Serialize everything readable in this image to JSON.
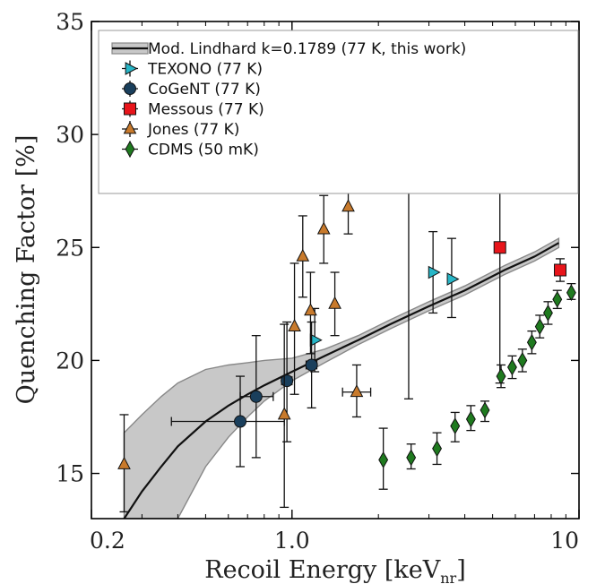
{
  "chart_data": {
    "type": "scatter",
    "title": "",
    "xlabel": "Recoil Energy [keV",
    "xlabel_sub": "nr",
    "xlabel_close": "]",
    "ylabel": "Quenching Factor [%]",
    "xscale": "log",
    "xlim": [
      0.2,
      10
    ],
    "ylim": [
      13,
      35
    ],
    "xticks": [
      {
        "v": 0.2,
        "label": "0.2"
      },
      {
        "v": 1.0,
        "label": "1.0"
      },
      {
        "v": 10,
        "label": "10"
      }
    ],
    "yticks": [
      {
        "v": 15,
        "label": "15"
      },
      {
        "v": 20,
        "label": "20"
      },
      {
        "v": 25,
        "label": "25"
      },
      {
        "v": 30,
        "label": "30"
      },
      {
        "v": 35,
        "label": "35"
      }
    ],
    "legend_position": "top-right",
    "curve": {
      "name": "Mod. Lindhard k=0.1789 (77 K, this work)",
      "color": "#111111",
      "band_color": "#c8c8c8",
      "x": [
        0.26,
        0.3,
        0.35,
        0.4,
        0.5,
        0.6,
        0.7,
        0.8,
        1.0,
        1.3,
        1.7,
        2.2,
        3.0,
        4.0,
        5.5,
        7.0,
        8.5
      ],
      "y": [
        13.0,
        14.2,
        15.3,
        16.2,
        17.3,
        18.0,
        18.5,
        18.9,
        19.5,
        20.2,
        20.9,
        21.6,
        22.4,
        23.1,
        24.0,
        24.6,
        25.2
      ],
      "band_lower": [
        13.0,
        13.0,
        13.0,
        13.0,
        15.3,
        16.6,
        17.5,
        18.2,
        19.1,
        19.9,
        20.7,
        21.4,
        22.2,
        22.9,
        23.8,
        24.4,
        25.0
      ],
      "band_upper": [
        16.8,
        17.6,
        18.4,
        19.0,
        19.6,
        19.8,
        19.9,
        20.0,
        20.1,
        20.5,
        21.1,
        21.8,
        22.6,
        23.3,
        24.2,
        24.8,
        25.4
      ]
    },
    "series": [
      {
        "name": "TEXONO (77 K)",
        "marker": "triangle-right",
        "color": "#27b6c7",
        "points": [
          {
            "x": 1.2,
            "y": 20.9,
            "ylo": 19.5,
            "yhi": 22.3
          },
          {
            "x": 3.1,
            "y": 23.9,
            "ylo": 22.1,
            "yhi": 25.7
          },
          {
            "x": 3.6,
            "y": 23.6,
            "ylo": 21.9,
            "yhi": 25.4
          }
        ]
      },
      {
        "name": "CoGeNT (77 K)",
        "marker": "circle",
        "color": "#1a3f5c",
        "points": [
          {
            "x": 0.66,
            "y": 17.3,
            "ylo": 15.3,
            "yhi": 19.3,
            "xlo": 0.38,
            "xhi": 0.94
          },
          {
            "x": 0.75,
            "y": 18.4,
            "ylo": 15.7,
            "yhi": 21.1,
            "xlo": 0.66,
            "xhi": 0.86
          },
          {
            "x": 0.96,
            "y": 19.1,
            "ylo": 16.4,
            "yhi": 21.7,
            "xlo": 0.92,
            "xhi": 1.0
          },
          {
            "x": 1.17,
            "y": 19.8,
            "ylo": 17.9,
            "yhi": 21.7,
            "xlo": 1.12,
            "xhi": 1.22
          }
        ]
      },
      {
        "name": "Messous (77 K)",
        "marker": "square",
        "color": "#e8151b",
        "points": [
          {
            "x": 2.55,
            "y": 29.6,
            "ylo": 18.3,
            "yhi": 33.0
          },
          {
            "x": 5.3,
            "y": 25.0,
            "ylo": 19.0,
            "yhi": 31.1
          },
          {
            "x": 8.6,
            "y": 24.0,
            "ylo": 23.5,
            "yhi": 24.5
          }
        ]
      },
      {
        "name": "Jones (77 K)",
        "marker": "triangle-up",
        "color": "#c87a2c",
        "points": [
          {
            "x": 0.26,
            "y": 15.4,
            "ylo": 13.3,
            "yhi": 17.6
          },
          {
            "x": 0.94,
            "y": 17.6,
            "ylo": 13.5,
            "yhi": 21.6
          },
          {
            "x": 1.02,
            "y": 21.5,
            "ylo": 18.5,
            "yhi": 24.3
          },
          {
            "x": 1.09,
            "y": 24.6,
            "ylo": 22.8,
            "yhi": 26.4
          },
          {
            "x": 1.16,
            "y": 22.2,
            "ylo": 20.3,
            "yhi": 23.9
          },
          {
            "x": 1.29,
            "y": 25.8,
            "ylo": 24.3,
            "yhi": 27.3
          },
          {
            "x": 1.41,
            "y": 22.5,
            "ylo": 21.1,
            "yhi": 23.9
          },
          {
            "x": 1.57,
            "y": 26.8,
            "ylo": 25.6,
            "yhi": 28.1
          },
          {
            "x": 1.68,
            "y": 18.6,
            "ylo": 17.5,
            "yhi": 19.8,
            "xlo": 1.5,
            "xhi": 1.88
          }
        ]
      },
      {
        "name": "CDMS (50 mK)",
        "marker": "diamond",
        "color": "#1f7a1f",
        "points": [
          {
            "x": 2.08,
            "y": 15.6,
            "ylo": 14.3,
            "yhi": 17.0
          },
          {
            "x": 2.6,
            "y": 15.7,
            "ylo": 15.2,
            "yhi": 16.3
          },
          {
            "x": 3.2,
            "y": 16.1,
            "ylo": 15.4,
            "yhi": 16.8
          },
          {
            "x": 3.7,
            "y": 17.1,
            "ylo": 16.4,
            "yhi": 17.7
          },
          {
            "x": 4.2,
            "y": 17.4,
            "ylo": 16.9,
            "yhi": 18.0
          },
          {
            "x": 4.7,
            "y": 17.8,
            "ylo": 17.3,
            "yhi": 18.2
          },
          {
            "x": 5.35,
            "y": 19.3,
            "ylo": 18.8,
            "yhi": 19.8
          },
          {
            "x": 5.85,
            "y": 19.7,
            "ylo": 19.2,
            "yhi": 20.2
          },
          {
            "x": 6.35,
            "y": 20.0,
            "ylo": 19.5,
            "yhi": 20.5
          },
          {
            "x": 6.85,
            "y": 20.8,
            "ylo": 20.3,
            "yhi": 21.3
          },
          {
            "x": 7.3,
            "y": 21.5,
            "ylo": 21.0,
            "yhi": 22.0
          },
          {
            "x": 7.8,
            "y": 22.1,
            "ylo": 21.6,
            "yhi": 22.6
          },
          {
            "x": 8.4,
            "y": 22.7,
            "ylo": 22.3,
            "yhi": 23.1
          },
          {
            "x": 9.4,
            "y": 23.0,
            "ylo": 22.7,
            "yhi": 23.4
          }
        ]
      }
    ]
  }
}
